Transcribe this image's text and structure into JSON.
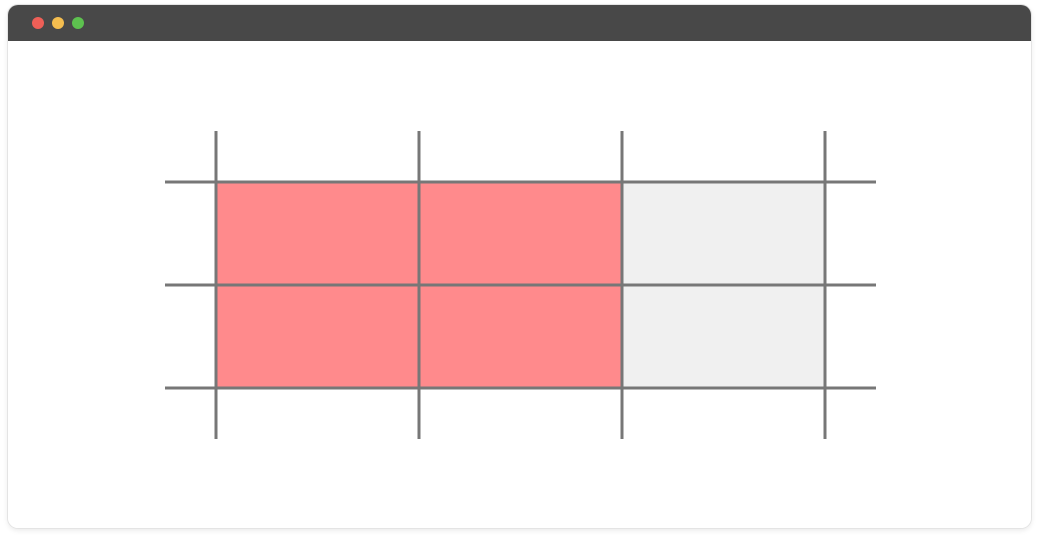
{
  "window": {
    "controls": [
      {
        "name": "close",
        "color": "#ee5f57"
      },
      {
        "name": "minimize",
        "color": "#f4bd4f"
      },
      {
        "name": "maximize",
        "color": "#5dc14f"
      }
    ]
  },
  "grid": {
    "rows": 2,
    "cols": 3,
    "filled_color": "#ff8a8c",
    "empty_color": "#f0f0f0",
    "line_color": "#777777",
    "cells": [
      [
        true,
        true,
        false
      ],
      [
        true,
        true,
        false
      ]
    ]
  }
}
